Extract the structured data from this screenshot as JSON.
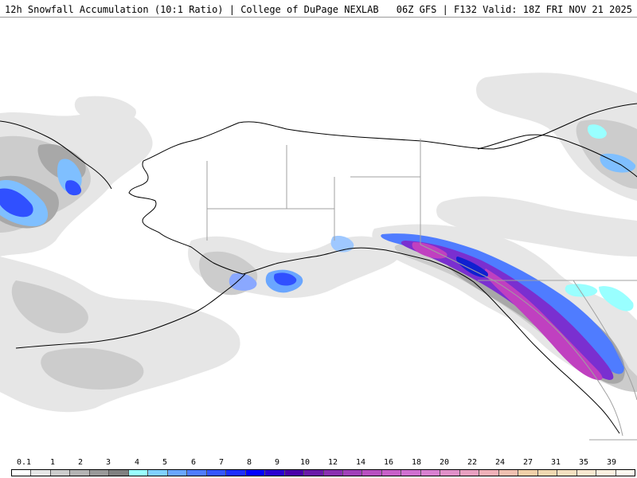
{
  "header": {
    "title_left": "12h Snowfall Accumulation (10:1 Ratio) | College of DuPage NEXLAB",
    "title_right": "06Z GFS | F132 Valid: 18Z FRI NOV 21 2025"
  },
  "legend": {
    "labels": [
      "0.1",
      "1",
      "2",
      "3",
      "4",
      "5",
      "6",
      "7",
      "8",
      "9",
      "10",
      "12",
      "14",
      "16",
      "18",
      "20",
      "22",
      "24",
      "27",
      "31",
      "35",
      "39"
    ],
    "colors": [
      "#ffffff",
      "#e6e6e6",
      "#cccccc",
      "#b3b3b3",
      "#999999",
      "#808080",
      "#99ffff",
      "#80d0ff",
      "#6aa6ff",
      "#4f7cff",
      "#3456ff",
      "#1c2eff",
      "#0000ff",
      "#2a00d0",
      "#4a00a8",
      "#6a1aa8",
      "#8a30b0",
      "#a040b8",
      "#b850c0",
      "#c860c8",
      "#d070d0",
      "#d880d0",
      "#e090c8",
      "#e8a0c0",
      "#f0b0b8",
      "#f0c0b0",
      "#f0d0a8",
      "#f0d8b0",
      "#f4e0c0",
      "#f8e8d0",
      "#fbf0e0",
      "#fdf8f0"
    ]
  },
  "map": {
    "colors": {
      "light_gray": "#e6e6e6",
      "mid_gray": "#cccccc",
      "dark_gray": "#a8a8a8",
      "cyan": "#80e0f0",
      "light_blue": "#6aa6ff",
      "blue": "#3050ff",
      "deep_blue": "#1020d0",
      "purple": "#7a2fd0",
      "magenta": "#c040c0",
      "outline": "#000000",
      "border": "#a0a0a0"
    }
  }
}
